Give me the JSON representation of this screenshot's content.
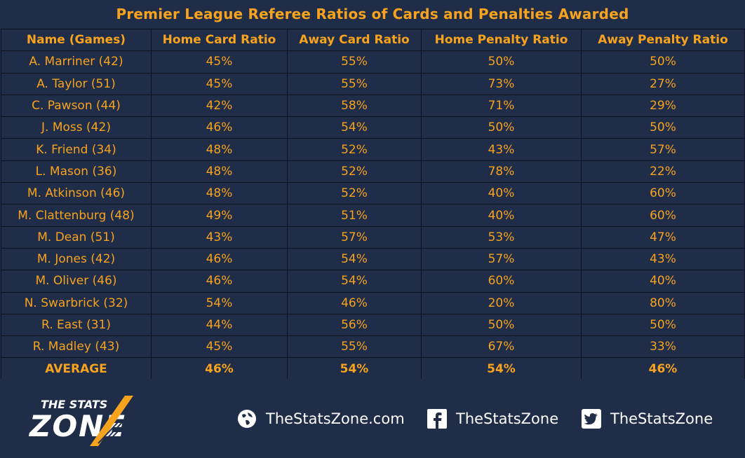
{
  "title": "Premier League Referee Ratios of Cards and Penalties Awarded",
  "chart_data": {
    "type": "table",
    "title": "Premier League Referee Ratios of Cards and Penalties Awarded",
    "columns": [
      "Name (Games)",
      "Home Card Ratio",
      "Away Card Ratio",
      "Home Penalty Ratio",
      "Away Penalty Ratio"
    ],
    "rows": [
      [
        "A. Marriner (42)",
        "45%",
        "55%",
        "50%",
        "50%"
      ],
      [
        "A. Taylor (51)",
        "45%",
        "55%",
        "73%",
        "27%"
      ],
      [
        "C. Pawson (44)",
        "42%",
        "58%",
        "71%",
        "29%"
      ],
      [
        "J. Moss (42)",
        "46%",
        "54%",
        "50%",
        "50%"
      ],
      [
        "K. Friend (34)",
        "48%",
        "52%",
        "43%",
        "57%"
      ],
      [
        "L. Mason (36)",
        "48%",
        "52%",
        "78%",
        "22%"
      ],
      [
        "M. Atkinson (46)",
        "48%",
        "52%",
        "40%",
        "60%"
      ],
      [
        "M. Clattenburg (48)",
        "49%",
        "51%",
        "40%",
        "60%"
      ],
      [
        "M. Dean (51)",
        "43%",
        "57%",
        "53%",
        "47%"
      ],
      [
        "M. Jones (42)",
        "46%",
        "54%",
        "57%",
        "43%"
      ],
      [
        "M. Oliver (46)",
        "46%",
        "54%",
        "60%",
        "40%"
      ],
      [
        "N. Swarbrick (32)",
        "54%",
        "46%",
        "20%",
        "80%"
      ],
      [
        "R. East (31)",
        "44%",
        "56%",
        "50%",
        "50%"
      ],
      [
        "R. Madley (43)",
        "45%",
        "55%",
        "67%",
        "33%"
      ]
    ],
    "average": [
      "AVERAGE",
      "46%",
      "54%",
      "54%",
      "46%"
    ]
  },
  "footer": {
    "logo_line1": "THE STATS",
    "logo_line2": "ZONE",
    "website": "TheStatsZone.com",
    "facebook": "TheStatsZone",
    "twitter": "TheStatsZone",
    "icons": [
      "globe-icon",
      "facebook-icon",
      "twitter-icon"
    ]
  },
  "colors": {
    "background": "#1f2d49",
    "accent": "#f7a31d",
    "grid": "#0c1220",
    "footer_text": "#ffffff"
  }
}
